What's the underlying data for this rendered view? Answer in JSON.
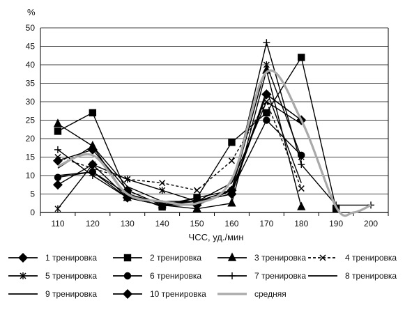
{
  "chart_data": {
    "type": "line",
    "title": "",
    "xlabel": "ЧСС, уд./мин",
    "ylabel": "%",
    "ylim": [
      0,
      50
    ],
    "yticks": [
      0,
      5,
      10,
      15,
      20,
      25,
      30,
      35,
      40,
      45,
      50
    ],
    "categories": [
      110,
      120,
      130,
      140,
      150,
      160,
      170,
      180,
      190,
      200
    ],
    "grid": "horizontal",
    "legend_position": "bottom",
    "series": [
      {
        "name": "1 тренировка",
        "marker": "diamond",
        "color": "#000000",
        "style": "solid",
        "x": [
          110,
          120,
          130,
          140,
          150,
          160,
          170,
          180
        ],
        "values": [
          7.5,
          13,
          4,
          2,
          3,
          5,
          32,
          25
        ]
      },
      {
        "name": "2 тренировка",
        "marker": "square",
        "color": "#000000",
        "style": "solid",
        "x": [
          110,
          120,
          130,
          140,
          150,
          160,
          170,
          180,
          190
        ],
        "values": [
          22,
          27,
          5,
          1.5,
          4,
          19,
          27,
          42,
          1
        ]
      },
      {
        "name": "3 тренировка",
        "marker": "triangle",
        "color": "#000000",
        "style": "solid",
        "x": [
          110,
          120,
          130,
          140,
          150,
          160,
          170,
          180
        ],
        "values": [
          24,
          18,
          4,
          2,
          1,
          2.5,
          38.5,
          1.5
        ]
      },
      {
        "name": "4 тренировка",
        "marker": "x",
        "color": "#000000",
        "style": "dashed",
        "x": [
          110,
          120,
          130,
          140,
          150,
          160,
          170,
          180
        ],
        "values": [
          15,
          12,
          9,
          8,
          6,
          14,
          30,
          6.5
        ]
      },
      {
        "name": "5 тренировка",
        "marker": "asterisk",
        "color": "#000000",
        "style": "solid",
        "x": [
          110,
          120,
          130,
          140,
          150,
          160,
          170,
          180
        ],
        "values": [
          1,
          13,
          9,
          6,
          3,
          6,
          40,
          15
        ]
      },
      {
        "name": "6 тренировка",
        "marker": "circle",
        "color": "#000000",
        "style": "solid",
        "x": [
          110,
          120,
          130,
          140,
          150,
          160,
          170,
          180
        ],
        "values": [
          9.5,
          11,
          4,
          2,
          4,
          6,
          25,
          15.5
        ]
      },
      {
        "name": "7 тренировка",
        "marker": "plus",
        "color": "#000000",
        "style": "solid",
        "x": [
          110,
          120,
          130,
          140,
          150,
          160,
          170,
          180,
          190,
          200
        ],
        "values": [
          17,
          10,
          4,
          2,
          2,
          6,
          46,
          13,
          2,
          2
        ]
      },
      {
        "name": "8 тренировка",
        "marker": "none",
        "color": "#000000",
        "style": "solid",
        "x": [
          110,
          120,
          130,
          140,
          150,
          160,
          170,
          180
        ],
        "values": [
          12,
          18,
          7,
          3,
          3,
          5,
          33,
          8
        ]
      },
      {
        "name": "9 тренировка",
        "marker": "none",
        "color": "#000000",
        "style": "solid",
        "x": [
          110,
          120,
          130,
          140,
          150,
          160,
          170,
          180
        ],
        "values": [
          10,
          11,
          5,
          2.5,
          3,
          8,
          30,
          24
        ]
      },
      {
        "name": "10 тренировка",
        "marker": "diamond",
        "color": "#000000",
        "style": "solid",
        "x": [
          110,
          120,
          130,
          140,
          150,
          160,
          170,
          180
        ],
        "values": [
          14,
          17,
          6,
          2,
          2,
          6,
          32,
          25
        ]
      },
      {
        "name": "средняя",
        "marker": "none",
        "color": "#a9a9a9",
        "style": "smooth",
        "x": [
          110,
          120,
          130,
          140,
          150,
          160,
          170,
          180,
          190,
          195,
          200
        ],
        "values": [
          12.5,
          15.5,
          5,
          3,
          2.5,
          9,
          38,
          25,
          1.5,
          0,
          2
        ]
      }
    ]
  }
}
